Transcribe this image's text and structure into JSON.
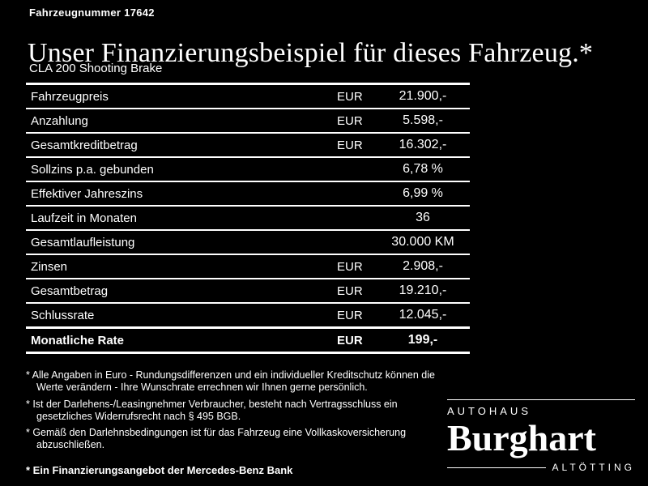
{
  "page": {
    "background": "#000000",
    "text_color": "#ffffff"
  },
  "header": {
    "vehicle_number": "Fahrzeugnummer 17642",
    "title": "Unser Finanzierungsbeispiel für dieses Fahrzeug.*",
    "model": "CLA 200 Shooting Brake"
  },
  "finance_table": {
    "rows": [
      {
        "label": "Fahrzeugpreis",
        "currency": "EUR",
        "value": "21.900,-",
        "emphasis": false
      },
      {
        "label": "Anzahlung",
        "currency": "EUR",
        "value": "5.598,-",
        "emphasis": false
      },
      {
        "label": "Gesamtkreditbetrag",
        "currency": "EUR",
        "value": "16.302,-",
        "emphasis": false
      },
      {
        "label": "Sollzins p.a. gebunden",
        "currency": "",
        "value": "6,78 %",
        "emphasis": false
      },
      {
        "label": "Effektiver Jahreszins",
        "currency": "",
        "value": "6,99 %",
        "emphasis": false
      },
      {
        "label": "Laufzeit in Monaten",
        "currency": "",
        "value": "36",
        "emphasis": false
      },
      {
        "label": "Gesamtlaufleistung",
        "currency": "",
        "value": "30.000 KM",
        "emphasis": false
      },
      {
        "label": "Zinsen",
        "currency": "EUR",
        "value": "2.908,-",
        "emphasis": false
      },
      {
        "label": "Gesamtbetrag",
        "currency": "EUR",
        "value": "19.210,-",
        "emphasis": false
      },
      {
        "label": "Schlussrate",
        "currency": "EUR",
        "value": "12.045,-",
        "emphasis": false
      },
      {
        "label": "Monatliche Rate",
        "currency": "EUR",
        "value": "199,-",
        "emphasis": true
      }
    ]
  },
  "footnotes": {
    "items": [
      {
        "text": "* Alle Angaben in Euro - Rundungsdifferenzen und ein individueller Kreditschutz können die Werte verändern - Ihre Wunschrate errechnen wir Ihnen gerne persönlich.",
        "bold": false
      },
      {
        "text": "* Ist der Darlehens-/Leasingnehmer Verbraucher, besteht nach Vertragsschluss ein gesetzliches Widerrufsrecht nach § 495 BGB.",
        "bold": false
      },
      {
        "text": "* Gemäß den Darlehnsbedingungen ist für das Fahrzeug eine Vollkaskoversicherung abzuschließen.",
        "bold": false
      },
      {
        "text": "* Ein Finanzierungsangebot der Mercedes-Benz Bank",
        "bold": true
      }
    ]
  },
  "dealer_logo": {
    "autohaus": "AUTOHAUS",
    "name": "Burghart",
    "city": "ALTÖTTING"
  }
}
